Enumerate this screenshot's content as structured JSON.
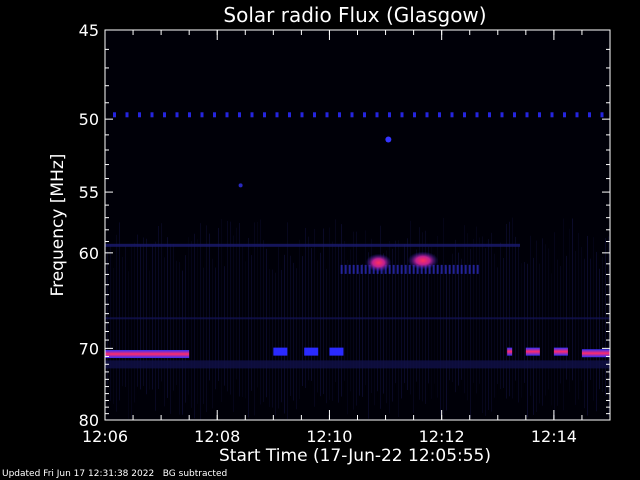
{
  "chart_data": {
    "type": "heatmap",
    "title": "Solar radio Flux (Glasgow)",
    "xlabel": "Start Time (17-Jun-22 12:05:55)",
    "ylabel": "Frequency [MHz]",
    "x_range_minutes": [
      "12:06",
      "12:15"
    ],
    "y_range": [
      45,
      80
    ],
    "x_ticks": [
      "12:06",
      "12:08",
      "12:10",
      "12:12",
      "12:14"
    ],
    "y_ticks": [
      45,
      50,
      55,
      60,
      70,
      80
    ],
    "colors": {
      "background": "#000000",
      "faint": "#101040",
      "mid": "#2a2aff",
      "hot": "#ff2a6a"
    },
    "features": [
      {
        "name": "interference-70MHz-early",
        "freq": 70.7,
        "start": "12:06",
        "end": "12:07:30",
        "intensity": "hot"
      },
      {
        "name": "interference-70MHz-mid1",
        "freq": 70.4,
        "start": "12:09",
        "end": "12:09:15",
        "intensity": "mid"
      },
      {
        "name": "interference-70MHz-mid2",
        "freq": 70.4,
        "start": "12:09:33",
        "end": "12:09:48",
        "intensity": "mid"
      },
      {
        "name": "interference-70MHz-mid3",
        "freq": 70.4,
        "start": "12:10",
        "end": "12:10:15",
        "intensity": "mid"
      },
      {
        "name": "interference-70MHz-late1",
        "freq": 70.4,
        "start": "12:13:10",
        "end": "12:13:15",
        "intensity": "hot"
      },
      {
        "name": "interference-70MHz-late2",
        "freq": 70.4,
        "start": "12:13:30",
        "end": "12:13:45",
        "intensity": "hot"
      },
      {
        "name": "interference-70MHz-late3",
        "freq": 70.4,
        "start": "12:14",
        "end": "12:14:15",
        "intensity": "hot"
      },
      {
        "name": "interference-70MHz-late4",
        "freq": 70.6,
        "start": "12:14:30",
        "end": "12:15",
        "intensity": "hot"
      },
      {
        "name": "burst-60MHz-a",
        "freq": 60.9,
        "start": "12:10:45",
        "end": "12:11",
        "intensity": "hot"
      },
      {
        "name": "burst-60MHz-b",
        "freq": 60.7,
        "start": "12:11:30",
        "end": "12:11:50",
        "intensity": "hot"
      }
    ]
  },
  "footer": {
    "updated": "Updated Fri Jun 17 12:31:38 2022",
    "note": "BG subtracted"
  }
}
